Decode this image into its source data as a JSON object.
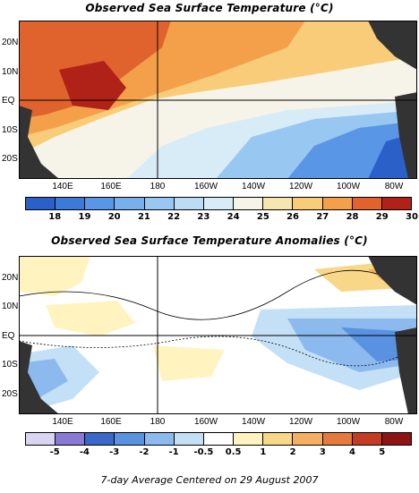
{
  "titles": {
    "sst": "Observed Sea Surface Temperature (°C)",
    "anom": "Observed Sea Surface Temperature Anomalies (°C)",
    "footer": "7-day Average Centered on 29 August 2007"
  },
  "lat_labels": [
    "20N",
    "10N",
    "EQ",
    "10S",
    "20S"
  ],
  "lon_labels": [
    "140E",
    "160E",
    "180",
    "160W",
    "140W",
    "120W",
    "100W",
    "80W"
  ],
  "sst_scale": {
    "labels": [
      "18",
      "19",
      "20",
      "21",
      "22",
      "23",
      "24",
      "25",
      "26",
      "27",
      "28",
      "29",
      "30"
    ],
    "colors": [
      "#2a60c8",
      "#3c7ad8",
      "#5a96e6",
      "#78b0ee",
      "#98c8f2",
      "#bcdcf6",
      "#d8ecf8",
      "#f6f4e8",
      "#f8e6b0",
      "#f8cc78",
      "#f4a04a",
      "#e0622c",
      "#b02218"
    ]
  },
  "anom_scale": {
    "labels": [
      "-5",
      "-4",
      "-3",
      "-2",
      "-1",
      "-0.5",
      "0.5",
      "1",
      "2",
      "3",
      "4",
      "5"
    ],
    "colors": [
      "#d8d4f2",
      "#8a7ad6",
      "#3a68c8",
      "#5a92e2",
      "#8cbaee",
      "#c4e0f6",
      "#ffffff",
      "#fff4c0",
      "#f8d888",
      "#f4b060",
      "#e67a3c",
      "#c43c22",
      "#8e1414"
    ]
  }
}
